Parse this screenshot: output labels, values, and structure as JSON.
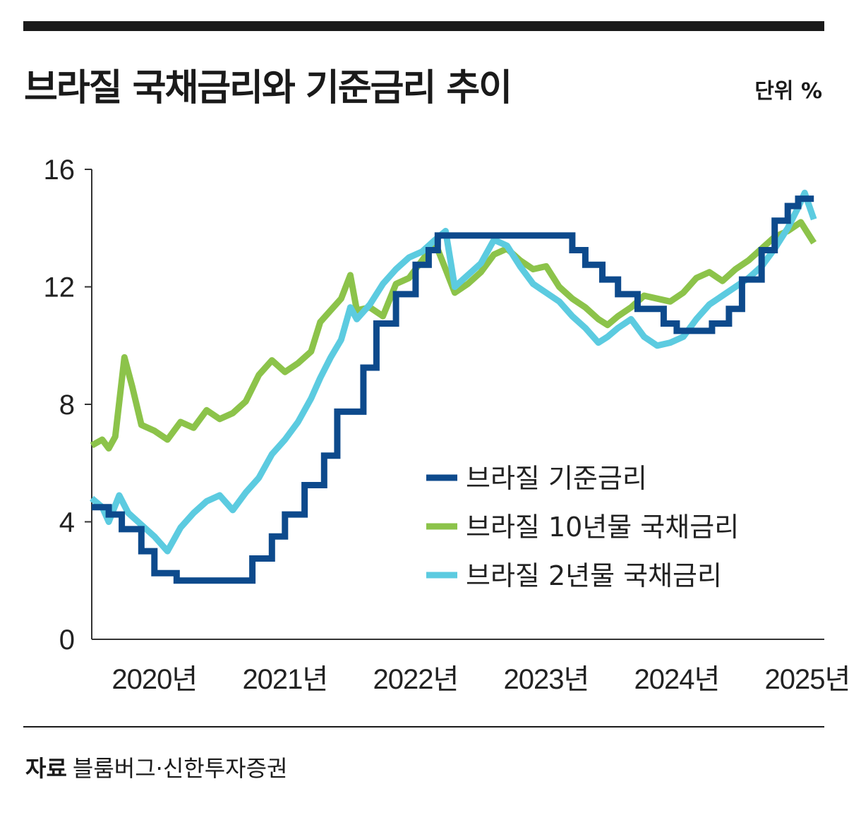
{
  "header": {
    "title": "브라질 국채금리와 기준금리 추이",
    "unit": "단위 %"
  },
  "source": {
    "label": "자료",
    "text": "블룸버그·신한투자증권"
  },
  "chart_data": {
    "type": "line",
    "title": "브라질 국채금리와 기준금리 추이",
    "ylabel": "단위 %",
    "ylim": [
      0,
      16
    ],
    "yticks": [
      0,
      4,
      8,
      12,
      16
    ],
    "xlim": [
      2019.97,
      2025.58
    ],
    "xticks": [
      {
        "value": 2020.45,
        "label": "2020년"
      },
      {
        "value": 2021.45,
        "label": "2021년"
      },
      {
        "value": 2022.45,
        "label": "2022년"
      },
      {
        "value": 2023.45,
        "label": "2023년"
      },
      {
        "value": 2024.45,
        "label": "2024년"
      },
      {
        "value": 2025.45,
        "label": "2025년"
      }
    ],
    "legend_position": "center-right",
    "series": [
      {
        "name": "브라질 기준금리",
        "color": "#0d4a8c",
        "step": true,
        "points": [
          [
            2019.97,
            4.5
          ],
          [
            2020.1,
            4.25
          ],
          [
            2020.2,
            3.75
          ],
          [
            2020.35,
            3.0
          ],
          [
            2020.45,
            2.25
          ],
          [
            2020.62,
            2.0
          ],
          [
            2021.2,
            2.75
          ],
          [
            2021.35,
            3.5
          ],
          [
            2021.45,
            4.25
          ],
          [
            2021.6,
            5.25
          ],
          [
            2021.75,
            6.25
          ],
          [
            2021.85,
            7.75
          ],
          [
            2022.05,
            9.25
          ],
          [
            2022.15,
            10.75
          ],
          [
            2022.3,
            11.75
          ],
          [
            2022.45,
            12.75
          ],
          [
            2022.55,
            13.25
          ],
          [
            2022.62,
            13.75
          ],
          [
            2023.65,
            13.25
          ],
          [
            2023.75,
            12.75
          ],
          [
            2023.88,
            12.25
          ],
          [
            2024.0,
            11.75
          ],
          [
            2024.15,
            11.25
          ],
          [
            2024.35,
            10.75
          ],
          [
            2024.45,
            10.5
          ],
          [
            2024.72,
            10.75
          ],
          [
            2024.85,
            11.25
          ],
          [
            2024.95,
            12.25
          ],
          [
            2025.1,
            13.25
          ],
          [
            2025.2,
            14.25
          ],
          [
            2025.3,
            14.75
          ],
          [
            2025.38,
            15.0
          ],
          [
            2025.5,
            15.0
          ]
        ]
      },
      {
        "name": "브라질 10년물 국채금리",
        "color": "#8cc34a",
        "step": false,
        "points": [
          [
            2019.97,
            6.6
          ],
          [
            2020.05,
            6.8
          ],
          [
            2020.1,
            6.5
          ],
          [
            2020.15,
            6.9
          ],
          [
            2020.22,
            9.6
          ],
          [
            2020.28,
            8.6
          ],
          [
            2020.35,
            7.3
          ],
          [
            2020.45,
            7.1
          ],
          [
            2020.55,
            6.8
          ],
          [
            2020.65,
            7.4
          ],
          [
            2020.75,
            7.2
          ],
          [
            2020.85,
            7.8
          ],
          [
            2020.95,
            7.5
          ],
          [
            2021.05,
            7.7
          ],
          [
            2021.15,
            8.1
          ],
          [
            2021.25,
            9.0
          ],
          [
            2021.35,
            9.5
          ],
          [
            2021.45,
            9.1
          ],
          [
            2021.55,
            9.4
          ],
          [
            2021.65,
            9.8
          ],
          [
            2021.72,
            10.8
          ],
          [
            2021.8,
            11.2
          ],
          [
            2021.88,
            11.6
          ],
          [
            2021.95,
            12.4
          ],
          [
            2022.0,
            11.2
          ],
          [
            2022.1,
            11.3
          ],
          [
            2022.2,
            11.0
          ],
          [
            2022.3,
            12.1
          ],
          [
            2022.4,
            12.3
          ],
          [
            2022.5,
            12.9
          ],
          [
            2022.6,
            13.5
          ],
          [
            2022.68,
            12.6
          ],
          [
            2022.75,
            11.8
          ],
          [
            2022.85,
            12.1
          ],
          [
            2022.95,
            12.5
          ],
          [
            2023.05,
            13.1
          ],
          [
            2023.15,
            13.3
          ],
          [
            2023.25,
            12.9
          ],
          [
            2023.35,
            12.6
          ],
          [
            2023.45,
            12.7
          ],
          [
            2023.55,
            12.0
          ],
          [
            2023.65,
            11.6
          ],
          [
            2023.75,
            11.3
          ],
          [
            2023.85,
            10.9
          ],
          [
            2023.92,
            10.7
          ],
          [
            2024.0,
            11.0
          ],
          [
            2024.1,
            11.3
          ],
          [
            2024.2,
            11.7
          ],
          [
            2024.3,
            11.6
          ],
          [
            2024.4,
            11.5
          ],
          [
            2024.5,
            11.8
          ],
          [
            2024.6,
            12.3
          ],
          [
            2024.7,
            12.5
          ],
          [
            2024.8,
            12.2
          ],
          [
            2024.9,
            12.6
          ],
          [
            2025.0,
            12.9
          ],
          [
            2025.1,
            13.3
          ],
          [
            2025.2,
            13.7
          ],
          [
            2025.3,
            13.9
          ],
          [
            2025.4,
            14.2
          ],
          [
            2025.5,
            13.5
          ]
        ]
      },
      {
        "name": "브라질 2년물 국채금리",
        "color": "#5ccbe0",
        "step": false,
        "points": [
          [
            2019.97,
            4.8
          ],
          [
            2020.05,
            4.5
          ],
          [
            2020.1,
            4.0
          ],
          [
            2020.18,
            4.9
          ],
          [
            2020.25,
            4.3
          ],
          [
            2020.35,
            3.9
          ],
          [
            2020.45,
            3.5
          ],
          [
            2020.55,
            3.0
          ],
          [
            2020.65,
            3.8
          ],
          [
            2020.75,
            4.3
          ],
          [
            2020.85,
            4.7
          ],
          [
            2020.95,
            4.9
          ],
          [
            2021.05,
            4.4
          ],
          [
            2021.15,
            5.0
          ],
          [
            2021.25,
            5.5
          ],
          [
            2021.35,
            6.3
          ],
          [
            2021.45,
            6.8
          ],
          [
            2021.55,
            7.4
          ],
          [
            2021.65,
            8.2
          ],
          [
            2021.72,
            8.9
          ],
          [
            2021.8,
            9.6
          ],
          [
            2021.88,
            10.2
          ],
          [
            2021.95,
            11.3
          ],
          [
            2022.0,
            10.9
          ],
          [
            2022.1,
            11.4
          ],
          [
            2022.2,
            12.1
          ],
          [
            2022.3,
            12.6
          ],
          [
            2022.4,
            13.0
          ],
          [
            2022.5,
            13.2
          ],
          [
            2022.6,
            13.6
          ],
          [
            2022.68,
            13.9
          ],
          [
            2022.75,
            12.0
          ],
          [
            2022.85,
            12.4
          ],
          [
            2022.95,
            12.8
          ],
          [
            2023.05,
            13.6
          ],
          [
            2023.15,
            13.4
          ],
          [
            2023.25,
            12.7
          ],
          [
            2023.35,
            12.1
          ],
          [
            2023.45,
            11.8
          ],
          [
            2023.55,
            11.5
          ],
          [
            2023.65,
            11.0
          ],
          [
            2023.75,
            10.6
          ],
          [
            2023.85,
            10.1
          ],
          [
            2023.92,
            10.3
          ],
          [
            2024.0,
            10.6
          ],
          [
            2024.1,
            10.9
          ],
          [
            2024.2,
            10.3
          ],
          [
            2024.3,
            10.0
          ],
          [
            2024.4,
            10.1
          ],
          [
            2024.5,
            10.3
          ],
          [
            2024.6,
            10.9
          ],
          [
            2024.7,
            11.4
          ],
          [
            2024.8,
            11.7
          ],
          [
            2024.9,
            12.0
          ],
          [
            2025.0,
            12.3
          ],
          [
            2025.1,
            12.7
          ],
          [
            2025.2,
            13.3
          ],
          [
            2025.3,
            14.0
          ],
          [
            2025.38,
            14.7
          ],
          [
            2025.43,
            15.2
          ],
          [
            2025.5,
            14.3
          ]
        ]
      }
    ]
  }
}
